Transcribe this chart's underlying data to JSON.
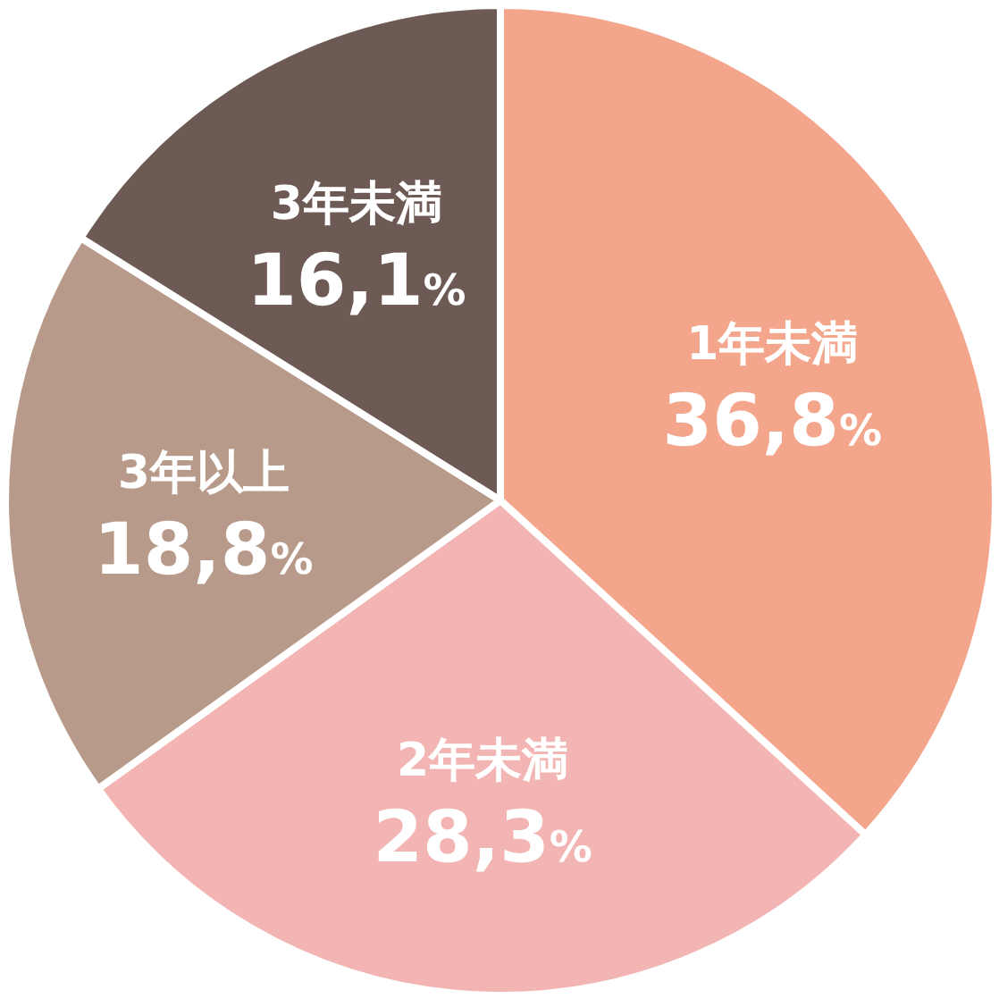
{
  "chart_data": {
    "type": "pie",
    "categories": [
      "1年未満",
      "2年未満",
      "3年以上",
      "3年未満"
    ],
    "values": [
      36.8,
      28.3,
      18.8,
      16.1
    ],
    "colors": [
      "#f3a68c",
      "#f2b5b3",
      "#b89a8a",
      "#6e5a55"
    ],
    "value_labels": [
      "36,8%",
      "28,3%",
      "18,8%",
      "16,1%"
    ]
  }
}
